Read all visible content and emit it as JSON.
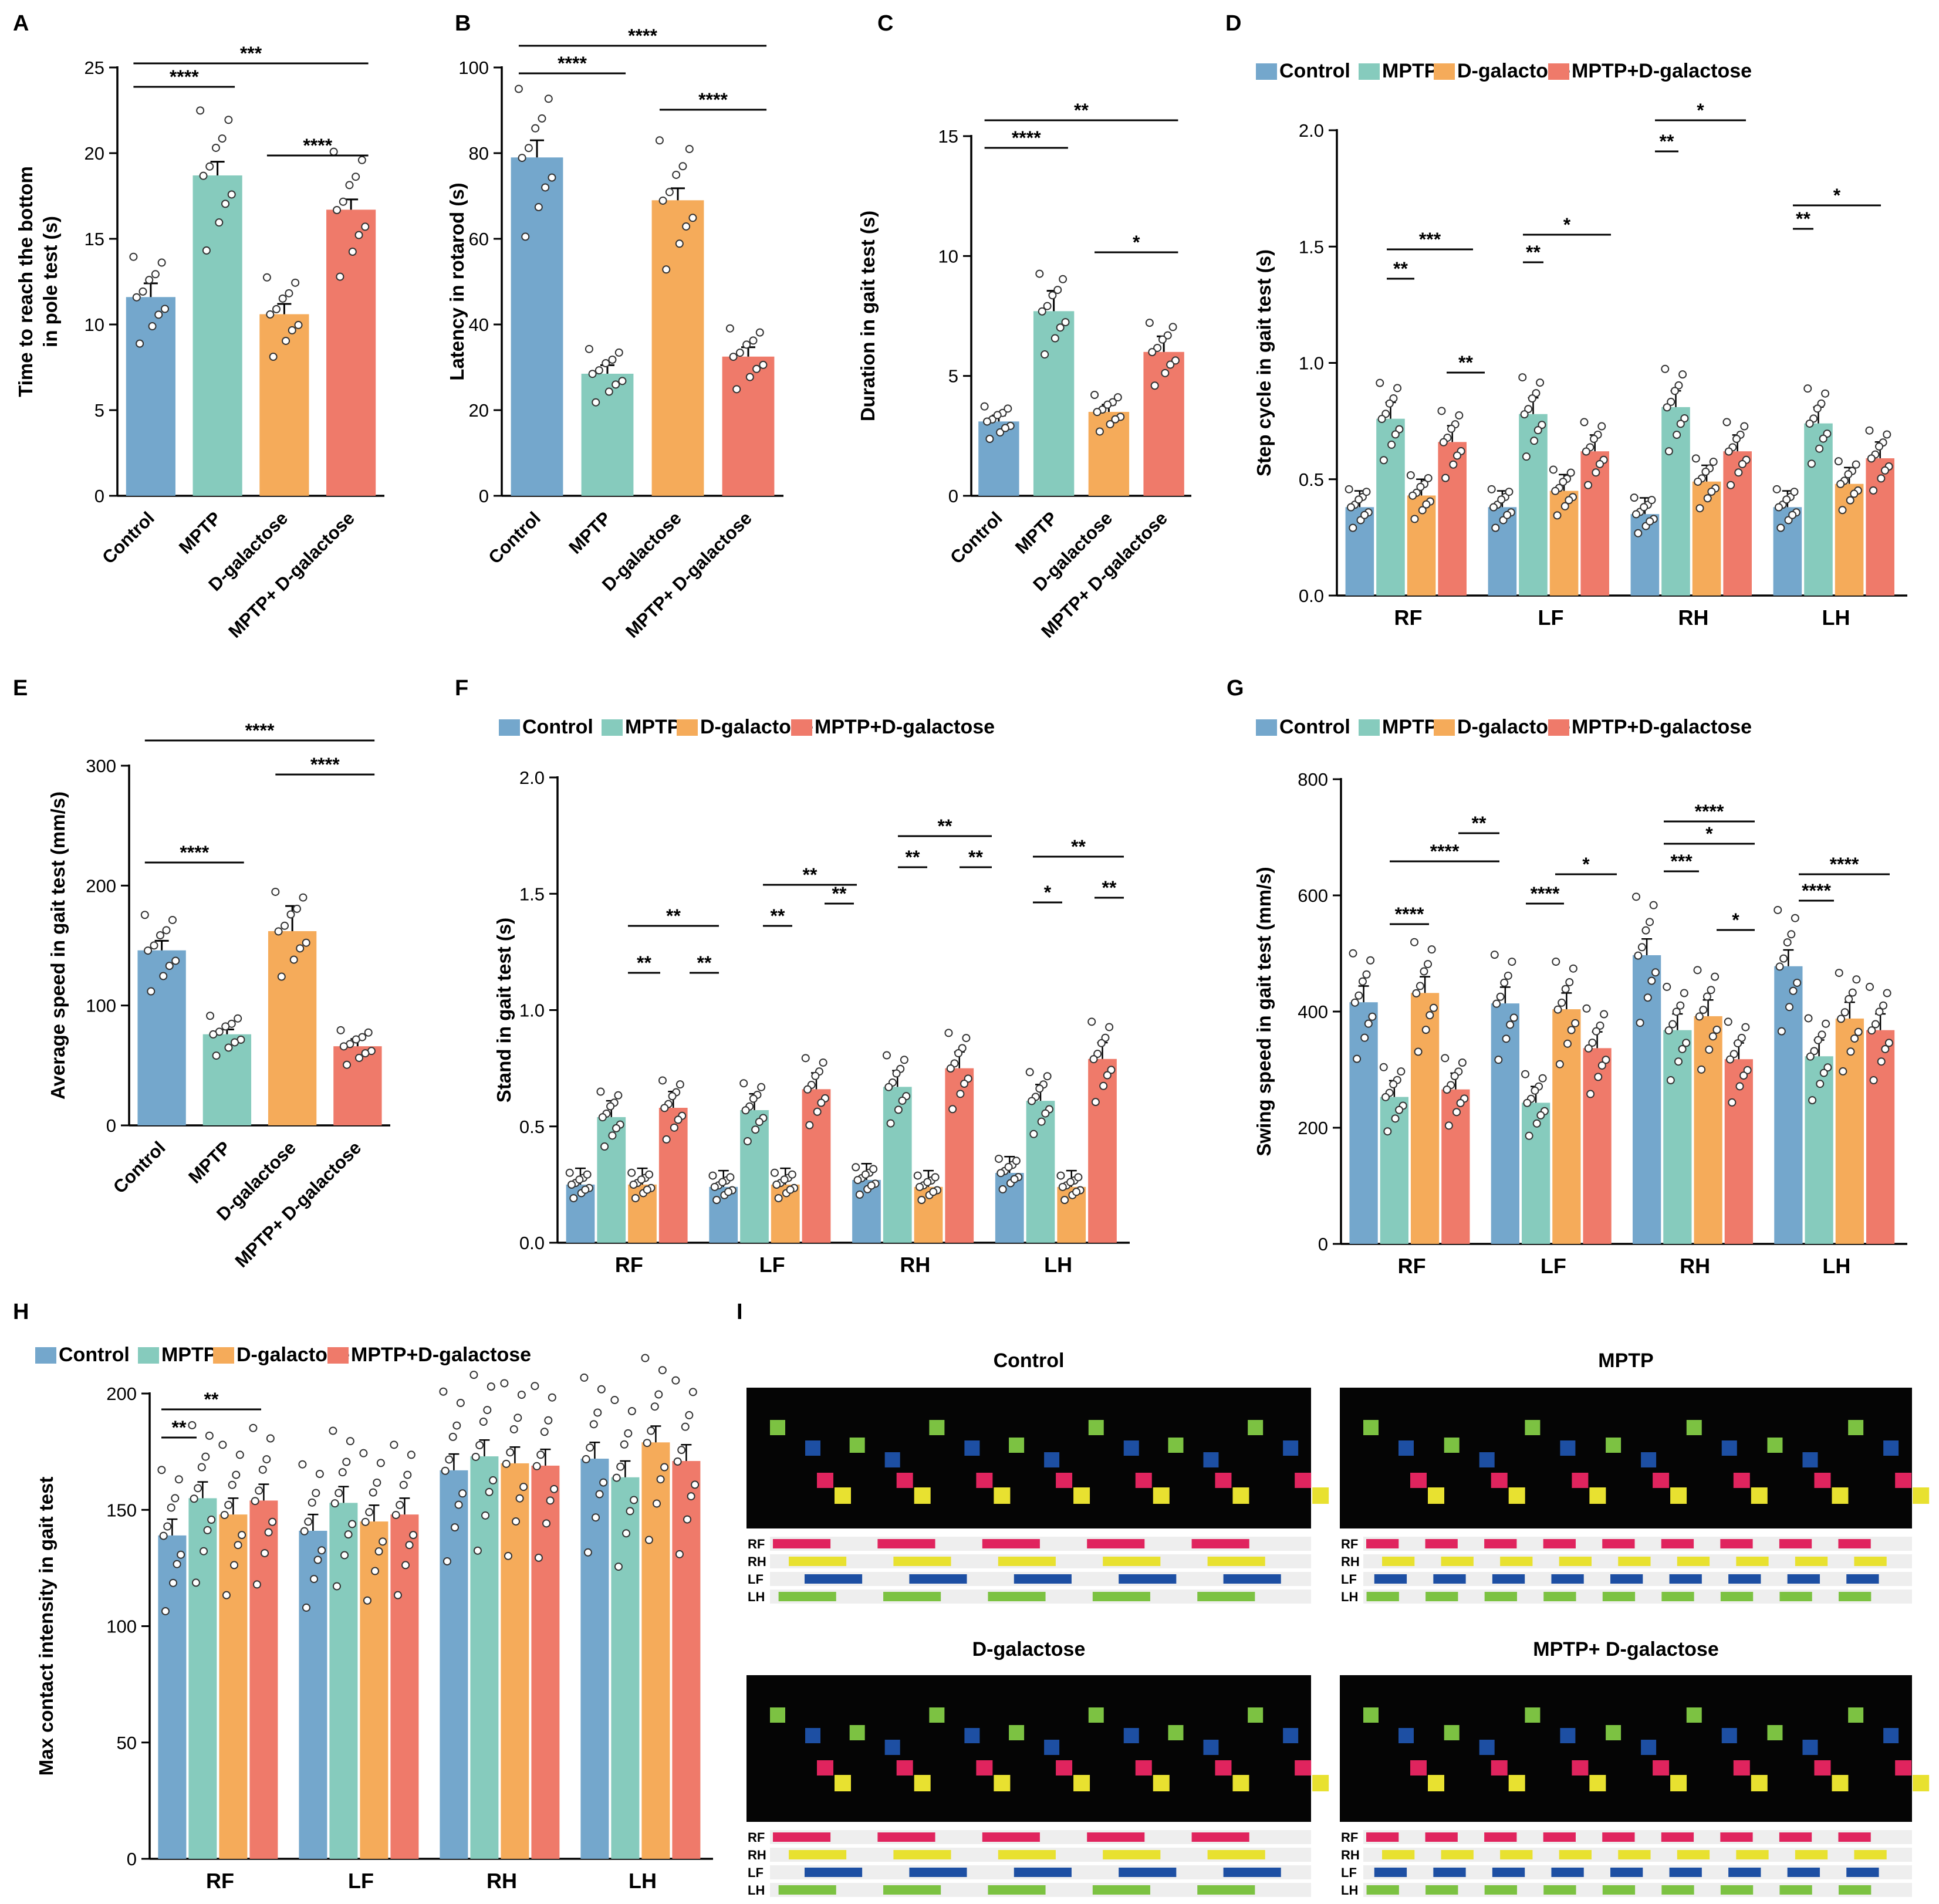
{
  "colors": {
    "control": "#74a7cc",
    "mptp": "#86cbbd",
    "dgal": "#f5ab5a",
    "combo": "#ef7a6a",
    "bg": "#ffffff",
    "axis": "#000000"
  },
  "legend": [
    "Control",
    "MPTP",
    "D-galactose",
    "MPTP+D-galactose"
  ],
  "chart_data": [
    {
      "panel": "A",
      "type": "bar",
      "ylabel": "Time to reach the bottom in pole test (s)",
      "categories": [
        "Control",
        "MPTP",
        "D-galactose",
        "MPTP+ D-galactose"
      ],
      "values": [
        11.6,
        18.7,
        10.6,
        16.7
      ],
      "errors": [
        0.8,
        0.8,
        0.6,
        0.6
      ],
      "ylim": [
        0,
        25
      ],
      "yticks": [
        0,
        5,
        10,
        15,
        20,
        25
      ],
      "comparisons": [
        {
          "from": 0,
          "to": 1,
          "label": "****"
        },
        {
          "from": 0,
          "to": 3,
          "label": "***"
        },
        {
          "from": 2,
          "to": 3,
          "label": "****"
        }
      ]
    },
    {
      "panel": "B",
      "type": "bar",
      "ylabel": "Latency in rotarod (s)",
      "categories": [
        "Control",
        "MPTP",
        "D-galactose",
        "MPTP+ D-galactose"
      ],
      "values": [
        79,
        28.5,
        69,
        32.5
      ],
      "errors": [
        4,
        2,
        2.8,
        2.2
      ],
      "ylim": [
        0,
        100
      ],
      "yticks": [
        0,
        20,
        40,
        60,
        80,
        100
      ],
      "comparisons": [
        {
          "from": 0,
          "to": 1,
          "label": "****"
        },
        {
          "from": 0,
          "to": 3,
          "label": "****"
        },
        {
          "from": 2,
          "to": 3,
          "label": "****"
        }
      ]
    },
    {
      "panel": "C",
      "type": "bar",
      "ylabel": "Duration in gait test (s)",
      "categories": [
        "Control",
        "MPTP",
        "D-galactose",
        "MPTP+ D-galactose"
      ],
      "values": [
        3.1,
        7.7,
        3.5,
        6.0
      ],
      "errors": [
        0.25,
        0.85,
        0.3,
        0.65
      ],
      "ylim": [
        0,
        15
      ],
      "yticks": [
        0,
        5,
        10,
        15
      ],
      "comparisons": [
        {
          "from": 0,
          "to": 1,
          "label": "****"
        },
        {
          "from": 0,
          "to": 3,
          "label": "**"
        },
        {
          "from": 2,
          "to": 3,
          "label": "*"
        }
      ]
    },
    {
      "panel": "D",
      "type": "grouped-bar",
      "ylabel": "Step cycle in gait test (s)",
      "categories": [
        "RF",
        "LF",
        "RH",
        "LH"
      ],
      "series": [
        {
          "name": "Control",
          "values": [
            0.38,
            0.38,
            0.35,
            0.38
          ]
        },
        {
          "name": "MPTP",
          "values": [
            0.76,
            0.78,
            0.81,
            0.74
          ]
        },
        {
          "name": "D-galactose",
          "values": [
            0.43,
            0.45,
            0.49,
            0.48
          ]
        },
        {
          "name": "MPTP+D-galactose",
          "values": [
            0.66,
            0.62,
            0.62,
            0.59
          ]
        }
      ],
      "ylim": [
        0,
        2
      ],
      "yticks": [
        "0.0",
        "0.5",
        "1.0",
        "1.5",
        "2.0"
      ]
    },
    {
      "panel": "E",
      "type": "bar",
      "ylabel": "Average speed in gait test (mm/s)",
      "categories": [
        "Control",
        "MPTP",
        "D-galactose",
        "MPTP+ D-galactose"
      ],
      "values": [
        146,
        76,
        162,
        66
      ],
      "errors": [
        8,
        4,
        21,
        6
      ],
      "ylim": [
        0,
        300
      ],
      "yticks": [
        0,
        100,
        200,
        300
      ],
      "comparisons": [
        {
          "from": 0,
          "to": 1,
          "label": "****"
        },
        {
          "from": 0,
          "to": 3,
          "label": "****"
        },
        {
          "from": 2,
          "to": 3,
          "label": "****"
        }
      ]
    },
    {
      "panel": "F",
      "type": "grouped-bar",
      "ylabel": "Stand in gait test (s)",
      "categories": [
        "RF",
        "LF",
        "RH",
        "LH"
      ],
      "series": [
        {
          "name": "Control",
          "values": [
            0.25,
            0.24,
            0.27,
            0.3
          ]
        },
        {
          "name": "MPTP",
          "values": [
            0.54,
            0.57,
            0.67,
            0.61
          ]
        },
        {
          "name": "D-galactose",
          "values": [
            0.25,
            0.25,
            0.24,
            0.24
          ]
        },
        {
          "name": "MPTP+D-galactose",
          "values": [
            0.58,
            0.66,
            0.75,
            0.79
          ]
        }
      ],
      "ylim": [
        0,
        2
      ],
      "yticks": [
        "0.0",
        "0.5",
        "1.0",
        "1.5",
        "2.0"
      ]
    },
    {
      "panel": "G",
      "type": "grouped-bar",
      "ylabel": "Swing speed in gait test (mm/s)",
      "categories": [
        "RF",
        "LF",
        "RH",
        "LH"
      ],
      "series": [
        {
          "name": "Control",
          "values": [
            416,
            414,
            497,
            478
          ]
        },
        {
          "name": "MPTP",
          "values": [
            253,
            243,
            368,
            323
          ]
        },
        {
          "name": "D-galactose",
          "values": [
            432,
            404,
            392,
            388
          ]
        },
        {
          "name": "MPTP+D-galactose",
          "values": [
            266,
            337,
            318,
            368
          ]
        }
      ],
      "ylim": [
        0,
        800
      ],
      "yticks": [
        0,
        200,
        400,
        600,
        800
      ]
    },
    {
      "panel": "H",
      "type": "grouped-bar",
      "ylabel": "Max contact intensity in gait test",
      "categories": [
        "RF",
        "LF",
        "RH",
        "LH"
      ],
      "series": [
        {
          "name": "Control",
          "values": [
            139,
            141,
            167,
            172
          ]
        },
        {
          "name": "MPTP",
          "values": [
            155,
            153,
            173,
            164
          ]
        },
        {
          "name": "D-galactose",
          "values": [
            148,
            145,
            170,
            179
          ]
        },
        {
          "name": "MPTP+D-galactose",
          "values": [
            154,
            148,
            169,
            171
          ]
        }
      ],
      "ylim": [
        0,
        200
      ],
      "yticks": [
        0,
        50,
        100,
        150,
        200
      ]
    }
  ],
  "gait_panel": {
    "label": "I",
    "groups": [
      "Control",
      "MPTP",
      "D-galactose",
      "MPTP+ D-galactose"
    ],
    "paws": [
      "RF",
      "RH",
      "LF",
      "LH"
    ],
    "paw_colors": {
      "RF": "#e0245e",
      "RH": "#e8e130",
      "LF": "#1d4fa3",
      "LH": "#7cc242"
    }
  }
}
